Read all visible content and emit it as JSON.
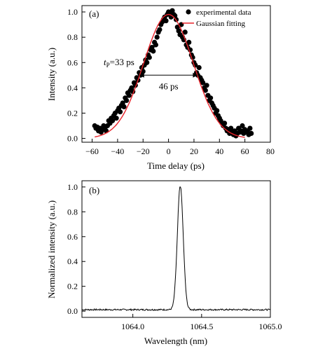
{
  "chart_data": [
    {
      "type": "scatter",
      "panel_label": "(a)",
      "xlabel": "Time delay (ps)",
      "ylabel": "Intensity (a.u.)",
      "xlim": [
        -68,
        80
      ],
      "ylim": [
        -0.03,
        1.05
      ],
      "xticks": [
        -60,
        -40,
        -20,
        0,
        20,
        40,
        60,
        80
      ],
      "yticks": [
        0.0,
        0.2,
        0.4,
        0.6,
        0.8,
        1.0
      ],
      "xtick_labels": [
        "−60",
        "−40",
        "−20",
        "0",
        "20",
        "40",
        "60",
        "80"
      ],
      "ytick_labels": [
        "0.0",
        "0.2",
        "0.4",
        "0.6",
        "0.8",
        "1.0"
      ],
      "grid": false,
      "legend_position": "top-right",
      "series": [
        {
          "name": "experimental data",
          "kind": "scatter",
          "color": "#000000",
          "x": [
            -58,
            -57,
            -56,
            -55,
            -54,
            -53,
            -52,
            -51,
            -50,
            -49,
            -48,
            -47,
            -46,
            -45,
            -44,
            -43,
            -42,
            -41,
            -40,
            -39,
            -38,
            -37,
            -36,
            -35,
            -34,
            -33,
            -32,
            -31,
            -30,
            -29,
            -28,
            -27,
            -26,
            -25,
            -24,
            -23,
            -22,
            -21,
            -20,
            -19,
            -18,
            -17,
            -16,
            -15,
            -14,
            -13,
            -12,
            -11,
            -10,
            -9,
            -8,
            -7,
            -6,
            -5,
            -4,
            -3,
            -2,
            -1,
            0,
            1,
            2,
            3,
            4,
            5,
            6,
            7,
            8,
            9,
            10,
            11,
            12,
            13,
            14,
            15,
            16,
            17,
            18,
            19,
            20,
            21,
            22,
            23,
            24,
            25,
            26,
            27,
            28,
            29,
            30,
            31,
            32,
            33,
            34,
            35,
            36,
            37,
            38,
            39,
            40,
            41,
            42,
            43,
            44,
            45,
            46,
            47,
            48,
            49,
            50,
            51,
            52,
            53,
            54,
            55,
            56,
            57,
            58,
            59,
            60,
            61,
            62,
            63,
            64,
            65
          ],
          "y": [
            0.1,
            0.08,
            0.09,
            0.06,
            0.08,
            0.05,
            0.07,
            0.1,
            0.08,
            0.06,
            0.1,
            0.14,
            0.12,
            0.16,
            0.14,
            0.18,
            0.2,
            0.16,
            0.22,
            0.24,
            0.21,
            0.26,
            0.28,
            0.25,
            0.32,
            0.3,
            0.36,
            0.34,
            0.38,
            0.4,
            0.37,
            0.44,
            0.42,
            0.48,
            0.46,
            0.52,
            0.5,
            0.56,
            0.53,
            0.58,
            0.62,
            0.6,
            0.66,
            0.64,
            0.7,
            0.72,
            0.69,
            0.76,
            0.74,
            0.8,
            0.84,
            0.86,
            0.9,
            0.92,
            0.94,
            0.96,
            0.93,
            0.98,
            1.0,
            0.99,
            0.96,
            1.01,
            0.98,
            0.97,
            0.94,
            0.88,
            0.85,
            0.82,
            0.9,
            0.8,
            0.78,
            0.84,
            0.74,
            0.72,
            0.76,
            0.7,
            0.66,
            0.64,
            0.6,
            0.58,
            0.52,
            0.5,
            0.56,
            0.48,
            0.46,
            0.44,
            0.4,
            0.38,
            0.42,
            0.34,
            0.3,
            0.32,
            0.28,
            0.26,
            0.24,
            0.2,
            0.22,
            0.18,
            0.16,
            0.14,
            0.12,
            0.1,
            0.12,
            0.08,
            0.06,
            0.07,
            0.04,
            0.08,
            0.05,
            0.03,
            0.06,
            0.02,
            0.04,
            0.08,
            0.05,
            0.06,
            0.1,
            0.04,
            0.07,
            0.05,
            0.06,
            0.03,
            0.08,
            0.04
          ]
        },
        {
          "name": "Gaussian fitting",
          "kind": "line",
          "color": "#e8232a",
          "gaussian": {
            "amplitude": 0.98,
            "center": 0,
            "fwhm": 46,
            "xrange": [
              -58,
              60
            ]
          }
        }
      ],
      "annotations": [
        {
          "text": "46 ps",
          "type": "double-arrow",
          "x1": -23,
          "x2": 23,
          "y": 0.5
        },
        {
          "text_base": "t",
          "text_sub": "P",
          "text_rest": "=33 ps"
        }
      ]
    },
    {
      "type": "line",
      "panel_label": "(b)",
      "xlabel": "Wavelength (nm)",
      "ylabel": "Normalized intensity (a.u.)",
      "xlim": [
        1063.63,
        1065.0
      ],
      "ylim": [
        -0.05,
        1.05
      ],
      "xticks": [
        1064.0,
        1064.5,
        1065.0
      ],
      "yticks": [
        0.0,
        0.2,
        0.4,
        0.6,
        0.8,
        1.0
      ],
      "xtick_labels": [
        "1064.0",
        "1064.5",
        "1065.0"
      ],
      "ytick_labels": [
        "0.0",
        "0.2",
        "0.4",
        "0.6",
        "0.8",
        "1.0"
      ],
      "grid": false,
      "series": [
        {
          "kind": "line",
          "color": "#000000",
          "peak": {
            "center": 1064.345,
            "fwhm": 0.05,
            "amplitude": 1.0
          },
          "xrange": [
            1063.63,
            1065.0
          ],
          "step": 0.004
        }
      ]
    }
  ]
}
